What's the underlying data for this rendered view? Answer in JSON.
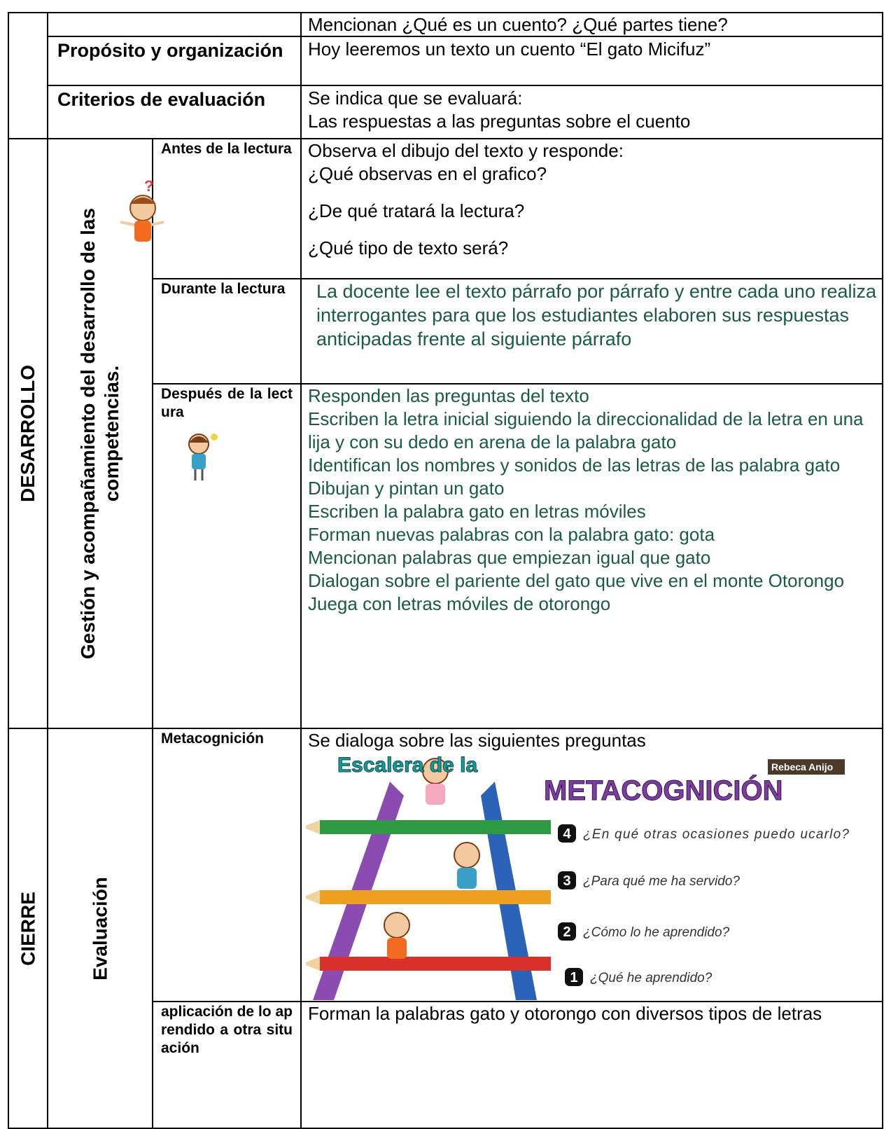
{
  "intro": {
    "question": "Mencionan ¿Qué es un cuento? ¿Qué partes tiene?",
    "rows": [
      {
        "label": "Propósito y organización",
        "content": [
          "Hoy leeremos un texto un cuento “El gato Micifuz”"
        ]
      },
      {
        "label": "Criterios de evaluación",
        "content": [
          "Se indica que se evaluará:",
          "Las respuestas a las preguntas sobre el cuento"
        ]
      }
    ]
  },
  "desarrollo": {
    "section": "DESARROLLO",
    "group": "Gestión y acompañamiento del desarrollo de las competencias.",
    "rows": [
      {
        "stage": "Antes de la lectura",
        "content": [
          "Observa el dibujo del texto y responde:",
          "¿Qué observas en el grafico?",
          "¿De qué tratará la lectura?",
          "¿Qué tipo de texto será?"
        ]
      },
      {
        "stage": "Durante la lectura",
        "content": [
          "La docente lee el texto párrafo por párrafo y entre cada uno realiza interrogantes para que los estudiantes elaboren sus respuestas anticipadas frente al siguiente párrafo"
        ]
      },
      {
        "stage": "Después de la lectura",
        "content": [
          "Responden  las preguntas del texto",
          "Escriben la letra inicial siguiendo la direccionalidad de la letra en una lija y con su dedo en arena  de la palabra gato",
          "Identifican los nombres y sonidos de las letras de las palabra  gato",
          "Dibujan y pintan un gato",
          "Escriben la palabra gato en letras móviles",
          "Forman nuevas palabras con la palabra gato: gota",
          "Mencionan palabras que empiezan igual que gato",
          "Dialogan sobre el pariente del gato que vive en el monte Otorongo",
          "Juega con letras móviles de otorongo"
        ]
      }
    ]
  },
  "cierre": {
    "section": "CIERRE",
    "group": "Evaluación",
    "rows": [
      {
        "stage": "Metacognición",
        "content": [
          "Se dialoga sobre las siguientes preguntas"
        ]
      },
      {
        "stage": "aplicación de lo aprendido a otra situación",
        "content": [
          "Forman la palabras gato y otorongo con diversos tipos de letras"
        ]
      }
    ],
    "image": {
      "title": "Escalera de la",
      "subtitle": "METACOGNICIÓN",
      "credit": "Rebeca Anijo",
      "steps": [
        {
          "number": "4",
          "question": "¿En qué otras ocasiones puedo ucarlo?"
        },
        {
          "number": "3",
          "question": "¿Para qué me ha servido?"
        },
        {
          "number": "2",
          "question": "¿Cómo lo he aprendido?"
        },
        {
          "number": "1",
          "question": "¿Qué he aprendido?"
        }
      ]
    }
  }
}
